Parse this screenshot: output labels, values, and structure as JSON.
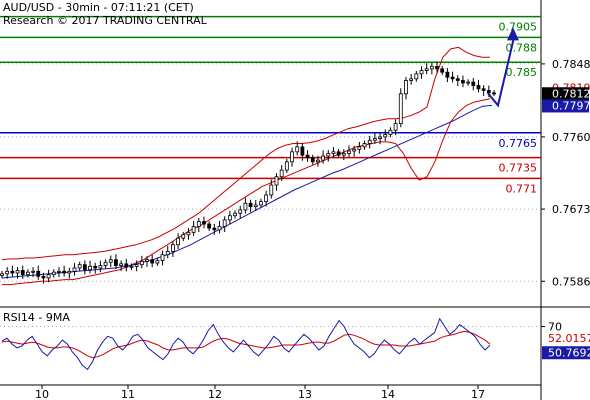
{
  "header": {
    "title": "AUD/USD - 30min - 07:11:21 (CET)",
    "research": "Research © 2017 TRADING CENTRAL"
  },
  "rsi_label": "RSI14 - 9MA",
  "colors": {
    "price": "#000000",
    "bollinger": "#cc0000",
    "ma": "#1a1aa6",
    "resistance": "#008000",
    "support": "#cc0000",
    "pivot": "#0000cc",
    "arrow": "#1a1aa6",
    "grid": "#aaaaaa",
    "tag_dark": "#000000",
    "tag_blue": "#1a1aa6",
    "tag_red": "#cc0000"
  },
  "chart_data": [
    {
      "type": "line",
      "subtype": "candlestick",
      "ylim": [
        0.7555,
        0.7925
      ],
      "yticks": [
        "0.7586",
        "0.7673",
        "0.7760",
        "0.7848"
      ],
      "xticks": [
        "10",
        "11",
        "12",
        "13",
        "14",
        "17"
      ],
      "grid": true,
      "levels": [
        {
          "value": 0.7905,
          "label": "0.7905",
          "kind": "resistance"
        },
        {
          "value": 0.788,
          "label": "0.788",
          "kind": "resistance"
        },
        {
          "value": 0.785,
          "label": "0.785",
          "kind": "resistance"
        },
        {
          "value": 0.7765,
          "label": "0.7765",
          "kind": "pivot"
        },
        {
          "value": 0.7735,
          "label": "0.7735",
          "kind": "support"
        },
        {
          "value": 0.771,
          "label": "0.771",
          "kind": "support"
        }
      ],
      "price_tags": [
        {
          "value": 0.78196,
          "label": "0.78196",
          "style": "plain_red"
        },
        {
          "value": 0.78126,
          "label": "0.78126",
          "style": "dark"
        },
        {
          "value": 0.77979,
          "label": "0.77979",
          "style": "blue"
        }
      ],
      "close_series": [
        0.7595,
        0.7598,
        0.7596,
        0.7599,
        0.7594,
        0.7597,
        0.7598,
        0.7592,
        0.759,
        0.7594,
        0.7597,
        0.7598,
        0.7596,
        0.7598,
        0.7602,
        0.7606,
        0.76,
        0.7604,
        0.7602,
        0.7605,
        0.7609,
        0.7612,
        0.7605,
        0.7607,
        0.7603,
        0.7604,
        0.7606,
        0.761,
        0.7612,
        0.7608,
        0.7611,
        0.7618,
        0.7622,
        0.763,
        0.7638,
        0.7642,
        0.7645,
        0.7652,
        0.7658,
        0.7655,
        0.765,
        0.7648,
        0.7652,
        0.766,
        0.7665,
        0.7668,
        0.7672,
        0.768,
        0.7676,
        0.7678,
        0.7682,
        0.769,
        0.7702,
        0.7712,
        0.772,
        0.773,
        0.7742,
        0.7748,
        0.7738,
        0.7735,
        0.773,
        0.7732,
        0.7737,
        0.774,
        0.7742,
        0.7738,
        0.774,
        0.7743,
        0.7745,
        0.7748,
        0.7752,
        0.7756,
        0.7758,
        0.776,
        0.7763,
        0.7768,
        0.7776,
        0.7812,
        0.7828,
        0.783,
        0.7836,
        0.784,
        0.7842,
        0.7845,
        0.7842,
        0.7838,
        0.7832,
        0.783,
        0.7828,
        0.7825,
        0.7826,
        0.7822,
        0.7818,
        0.7816,
        0.7813,
        0.78126
      ],
      "bollinger_upper": [
        0.7612,
        0.7613,
        0.7613,
        0.7614,
        0.7614,
        0.7615,
        0.7616,
        0.7617,
        0.7618,
        0.7618,
        0.7619,
        0.762,
        0.7621,
        0.7622,
        0.7624,
        0.7626,
        0.7628,
        0.763,
        0.7633,
        0.7636,
        0.764,
        0.7645,
        0.765,
        0.7656,
        0.7662,
        0.7668,
        0.7676,
        0.7684,
        0.7692,
        0.77,
        0.7708,
        0.7716,
        0.7724,
        0.7732,
        0.774,
        0.7746,
        0.775,
        0.7752,
        0.7752,
        0.7753,
        0.7755,
        0.7758,
        0.7762,
        0.7766,
        0.777,
        0.7772,
        0.7775,
        0.7778,
        0.778,
        0.7782,
        0.7782,
        0.7783,
        0.7786,
        0.779,
        0.7796,
        0.783,
        0.7856,
        0.7866,
        0.7868,
        0.7862,
        0.7858,
        0.7856,
        0.7856
      ],
      "bollinger_lower": [
        0.7582,
        0.7582,
        0.7583,
        0.7584,
        0.7585,
        0.7586,
        0.7586,
        0.7587,
        0.7588,
        0.7588,
        0.759,
        0.7592,
        0.7594,
        0.7596,
        0.7598,
        0.76,
        0.7604,
        0.7608,
        0.7612,
        0.7618,
        0.7624,
        0.763,
        0.7636,
        0.7642,
        0.7648,
        0.7652,
        0.7658,
        0.7664,
        0.767,
        0.7676,
        0.7682,
        0.7688,
        0.7694,
        0.77,
        0.7704,
        0.7708,
        0.7712,
        0.7716,
        0.772,
        0.7724,
        0.7728,
        0.7732,
        0.7736,
        0.774,
        0.7744,
        0.7748,
        0.775,
        0.7752,
        0.7754,
        0.7754,
        0.7752,
        0.774,
        0.7722,
        0.7708,
        0.7712,
        0.773,
        0.7756,
        0.7778,
        0.779,
        0.7798,
        0.7802,
        0.7804,
        0.7806
      ],
      "moving_average": [
        0.759,
        0.7591,
        0.7592,
        0.7593,
        0.7594,
        0.7595,
        0.7596,
        0.7597,
        0.7598,
        0.7599,
        0.76,
        0.7601,
        0.7602,
        0.7604,
        0.7606,
        0.7609,
        0.7612,
        0.7616,
        0.762,
        0.7625,
        0.763,
        0.7636,
        0.7642,
        0.7648,
        0.7654,
        0.766,
        0.7666,
        0.7672,
        0.7678,
        0.7684,
        0.769,
        0.7696,
        0.7701,
        0.7706,
        0.7711,
        0.7716,
        0.772,
        0.7725,
        0.773,
        0.7735,
        0.774,
        0.7745,
        0.775,
        0.7755,
        0.776,
        0.7765,
        0.777,
        0.7775,
        0.778,
        0.7786,
        0.7792,
        0.7797,
        0.7798
      ],
      "forecast_path": [
        0.78126,
        0.7798,
        0.788
      ]
    },
    {
      "type": "line",
      "name": "RSI14 - 9MA",
      "ylim": [
        10,
        90
      ],
      "yticks": [
        "70"
      ],
      "value_tags": [
        {
          "value": 52.0157,
          "label": "52.0157",
          "style": "red"
        },
        {
          "value": 50.7692,
          "label": "50.7692",
          "style": "blue"
        }
      ],
      "rsi": [
        55,
        58,
        52,
        48,
        50,
        56,
        60,
        52,
        44,
        40,
        46,
        50,
        56,
        52,
        44,
        38,
        30,
        26,
        34,
        46,
        54,
        60,
        58,
        50,
        46,
        52,
        60,
        62,
        56,
        48,
        44,
        40,
        36,
        42,
        52,
        58,
        54,
        46,
        42,
        48,
        56,
        66,
        72,
        62,
        54,
        48,
        44,
        50,
        56,
        50,
        44,
        40,
        46,
        52,
        60,
        56,
        48,
        44,
        50,
        56,
        62,
        58,
        52,
        46,
        50,
        60,
        68,
        76,
        70,
        60,
        52,
        48,
        44,
        38,
        42,
        50,
        56,
        52,
        46,
        42,
        48,
        54,
        58,
        52,
        56,
        60,
        64,
        78,
        70,
        62,
        66,
        72,
        68,
        64,
        60,
        52,
        46,
        50.7692
      ],
      "ma": [
        54,
        55,
        54,
        53,
        52,
        53,
        54,
        53,
        51,
        49,
        48,
        48,
        49,
        49,
        48,
        46,
        43,
        40,
        38,
        39,
        41,
        44,
        47,
        49,
        50,
        51,
        53,
        55,
        56,
        55,
        53,
        51,
        48,
        46,
        46,
        47,
        48,
        48,
        48,
        48,
        49,
        52,
        55,
        57,
        58,
        57,
        55,
        53,
        52,
        51,
        50,
        49,
        48,
        48,
        49,
        50,
        51,
        51,
        51,
        51,
        52,
        53,
        54,
        54,
        53,
        53,
        55,
        58,
        61,
        62,
        61,
        59,
        57,
        54,
        52,
        51,
        51,
        51,
        51,
        50,
        50,
        50,
        51,
        52,
        53,
        54,
        55,
        58,
        60,
        61,
        62,
        64,
        65,
        64,
        62,
        59,
        56,
        52.0157
      ]
    }
  ]
}
